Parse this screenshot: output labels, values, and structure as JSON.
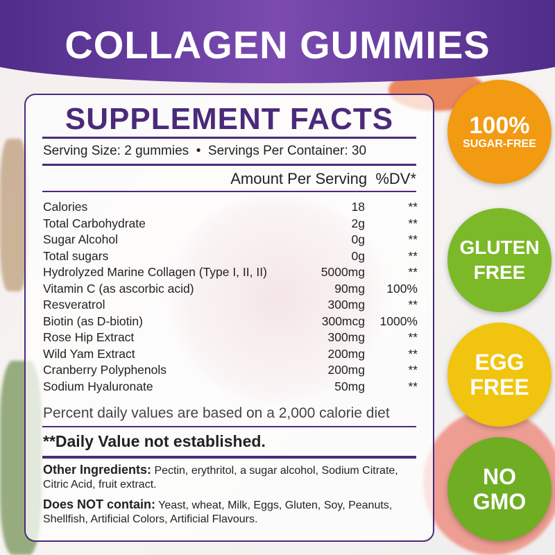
{
  "title": "COLLAGEN GUMMIES",
  "facts": {
    "heading": "SUPPLEMENT FACTS",
    "serving": "Serving Size: 2 gummies  •  Servings Per Container: 30",
    "amount_header": "Amount Per Serving  %DV*",
    "rows": [
      {
        "name": "Calories",
        "amount": "18",
        "dv": "**"
      },
      {
        "name": "Total Carbohydrate",
        "amount": "2g",
        "dv": "**"
      },
      {
        "name": "Sugar Alcohol",
        "amount": "0g",
        "dv": "**"
      },
      {
        "name": "Total sugars",
        "amount": "0g",
        "dv": "**"
      },
      {
        "name": "Hydrolyzed Marine Collagen (Type I, II, II)",
        "amount": "5000mg",
        "dv": "**"
      },
      {
        "name": "Vitamin C (as ascorbic acid)",
        "amount": "90mg",
        "dv": "100%"
      },
      {
        "name": "Resveratrol",
        "amount": "300mg",
        "dv": "**"
      },
      {
        "name": "Biotin (as D-biotin)",
        "amount": "300mcg",
        "dv": "1000%"
      },
      {
        "name": "Rose Hip Extract",
        "amount": "300mg",
        "dv": "**"
      },
      {
        "name": "Wild Yam Extract",
        "amount": "200mg",
        "dv": "**"
      },
      {
        "name": "Cranberry Polyphenols",
        "amount": "200mg",
        "dv": "**"
      },
      {
        "name": "Sodium Hyaluronate",
        "amount": "50mg",
        "dv": "**"
      }
    ],
    "percent_note": "Percent daily values are based on a 2,000 calorie diet",
    "dv_note": "**Daily Value not established.",
    "other_label": "Other Ingredients:",
    "other_text": " Pectin, erythritol, a sugar alcohol, Sodium Citrate, Citric Acid, fruit extract.",
    "not_label": "Does NOT contain:",
    "not_text": " Yeast, wheat, Milk, Eggs, Gluten, Soy, Peanuts, Shellfish, Artificial Colors, Artificial Flavours."
  },
  "badges": [
    {
      "line1": "100%",
      "line2": "SUGAR-FREE",
      "color": "#f29a12"
    },
    {
      "line1": "GLUTEN",
      "line2": "FREE",
      "color": "#7cb928"
    },
    {
      "line1": "EGG",
      "line2": "FREE",
      "color": "#f1c40f"
    },
    {
      "line1": "NO",
      "line2": "GMO",
      "color": "#6fae22"
    }
  ]
}
